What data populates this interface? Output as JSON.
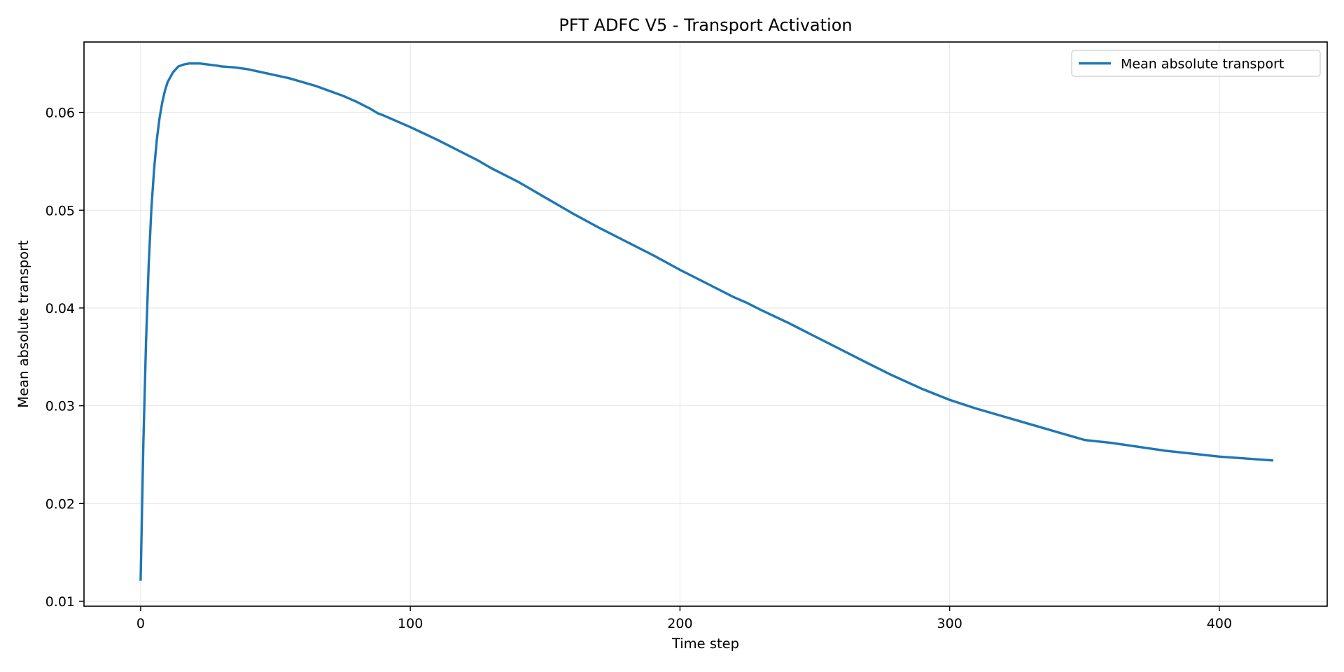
{
  "chart_data": {
    "type": "line",
    "title": "PFT ADFC V5 - Transport Activation",
    "xlabel": "Time step",
    "ylabel": "Mean absolute transport",
    "xlim": [
      -21,
      440
    ],
    "ylim": [
      0.0095,
      0.0672
    ],
    "xticks": [
      0,
      100,
      200,
      300,
      400
    ],
    "xtick_labels": [
      "0",
      "100",
      "200",
      "300",
      "400"
    ],
    "yticks": [
      0.01,
      0.02,
      0.03,
      0.04,
      0.05,
      0.06
    ],
    "ytick_labels": [
      "0.01",
      "0.02",
      "0.03",
      "0.04",
      "0.05",
      "0.06"
    ],
    "grid": true,
    "legend_position": "top-right",
    "colors": {
      "series": "#1f77b4",
      "grid": "#e6e6e6",
      "axis": "#000000"
    },
    "series": [
      {
        "name": "Mean absolute transport",
        "x": [
          0,
          1,
          2,
          3,
          4,
          5,
          6,
          7,
          8,
          9,
          10,
          12,
          14,
          16,
          18,
          20,
          22,
          25,
          28,
          30,
          35,
          40,
          45,
          50,
          55,
          60,
          65,
          70,
          75,
          80,
          85,
          88,
          90,
          95,
          100,
          110,
          120,
          125,
          130,
          140,
          150,
          160,
          170,
          180,
          190,
          200,
          210,
          220,
          225,
          230,
          240,
          250,
          260,
          270,
          278,
          290,
          300,
          310,
          320,
          330,
          340,
          350,
          360,
          370,
          380,
          390,
          400,
          410,
          420
        ],
        "values": [
          0.0121,
          0.026,
          0.0365,
          0.0445,
          0.0502,
          0.0542,
          0.0572,
          0.0594,
          0.061,
          0.0622,
          0.0631,
          0.0641,
          0.0647,
          0.0649,
          0.065,
          0.065,
          0.065,
          0.0649,
          0.0648,
          0.0647,
          0.0646,
          0.0644,
          0.0641,
          0.0638,
          0.0635,
          0.0631,
          0.0627,
          0.0622,
          0.0617,
          0.0611,
          0.0604,
          0.0599,
          0.0597,
          0.0591,
          0.0585,
          0.0572,
          0.0558,
          0.0551,
          0.0543,
          0.0529,
          0.0513,
          0.0497,
          0.0482,
          0.0468,
          0.0454,
          0.0439,
          0.0425,
          0.0411,
          0.0405,
          0.0398,
          0.0385,
          0.0371,
          0.0357,
          0.0343,
          0.0332,
          0.0317,
          0.0306,
          0.0297,
          0.0289,
          0.0281,
          0.0273,
          0.0265,
          0.0262,
          0.0258,
          0.0254,
          0.0251,
          0.0248,
          0.0246,
          0.0244
        ]
      }
    ]
  }
}
